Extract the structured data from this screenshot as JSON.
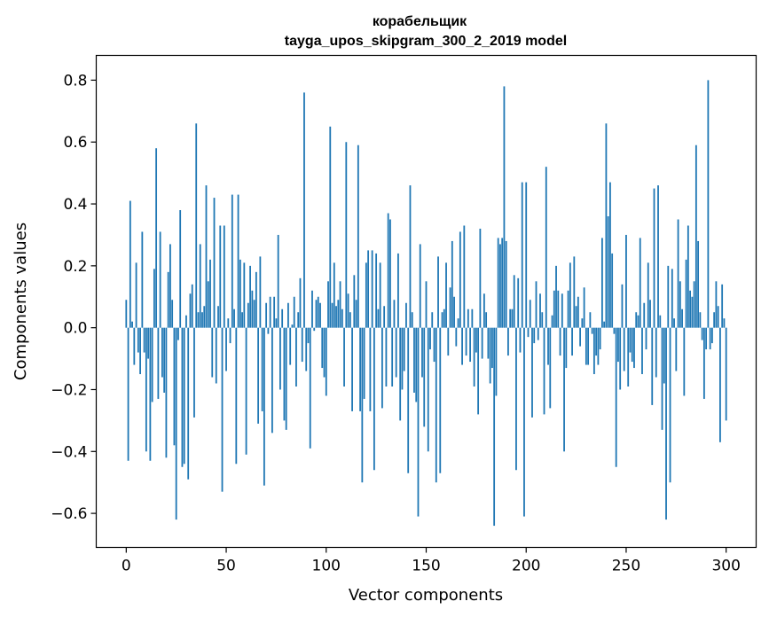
{
  "chart_data": {
    "type": "bar",
    "title": "корабельщик",
    "subtitle": "tayga_upos_skipgram_300_2_2019 model",
    "xlabel": "Vector components",
    "ylabel": "Components values",
    "xlim": [
      -15,
      315
    ],
    "ylim": [
      -0.71,
      0.88
    ],
    "xticks": [
      0,
      50,
      100,
      150,
      200,
      250,
      300
    ],
    "yticks": [
      -0.6,
      -0.4,
      -0.2,
      0.0,
      0.2,
      0.4,
      0.6,
      0.8
    ],
    "ytick_labels": [
      "−0.6",
      "−0.4",
      "−0.2",
      "0.0",
      "0.2",
      "0.4",
      "0.6",
      "0.8"
    ],
    "bar_color": "#1f77b4",
    "grid": false,
    "values": [
      0.09,
      -0.43,
      0.41,
      0.02,
      -0.12,
      0.21,
      -0.08,
      -0.15,
      0.31,
      -0.08,
      -0.4,
      -0.1,
      -0.43,
      -0.24,
      0.19,
      0.58,
      -0.23,
      0.31,
      -0.16,
      -0.21,
      -0.42,
      0.18,
      0.27,
      0.09,
      -0.38,
      -0.62,
      -0.04,
      0.38,
      -0.45,
      -0.44,
      0.04,
      -0.49,
      0.11,
      0.14,
      -0.29,
      0.66,
      0.05,
      0.27,
      0.05,
      0.07,
      0.46,
      0.15,
      0.22,
      -0.16,
      0.42,
      -0.18,
      0.07,
      0.33,
      -0.53,
      0.33,
      -0.14,
      0.03,
      -0.05,
      0.43,
      0.06,
      -0.44,
      0.43,
      0.22,
      0.05,
      0.21,
      -0.41,
      0.08,
      0.2,
      0.12,
      0.09,
      0.18,
      -0.31,
      0.23,
      -0.27,
      -0.51,
      0.08,
      -0.02,
      0.1,
      -0.34,
      0.1,
      0.03,
      0.3,
      -0.2,
      0.06,
      -0.3,
      -0.33,
      0.08,
      -0.12,
      0.01,
      0.1,
      -0.19,
      0.05,
      0.16,
      -0.11,
      0.76,
      -0.14,
      -0.05,
      -0.39,
      0.12,
      -0.01,
      0.09,
      0.1,
      0.08,
      -0.13,
      -0.16,
      -0.22,
      0.15,
      0.65,
      0.08,
      0.21,
      0.07,
      0.09,
      0.15,
      0.06,
      -0.19,
      0.6,
      0.11,
      0.05,
      -0.27,
      0.17,
      0.09,
      0.59,
      -0.27,
      -0.5,
      -0.23,
      0.21,
      0.25,
      -0.27,
      0.25,
      -0.46,
      0.24,
      0.06,
      0.21,
      -0.26,
      0.07,
      -0.19,
      0.37,
      0.35,
      -0.19,
      0.09,
      -0.16,
      0.24,
      -0.3,
      -0.2,
      -0.14,
      0.08,
      -0.47,
      0.46,
      0.05,
      -0.21,
      -0.24,
      -0.61,
      0.27,
      -0.16,
      -0.32,
      0.15,
      -0.4,
      -0.07,
      0.05,
      -0.11,
      -0.5,
      0.23,
      -0.47,
      0.05,
      0.06,
      0.21,
      -0.09,
      0.13,
      0.28,
      0.1,
      -0.06,
      0.03,
      0.31,
      -0.12,
      0.33,
      -0.09,
      0.06,
      -0.11,
      0.06,
      -0.19,
      -0.08,
      -0.28,
      0.32,
      -0.1,
      0.11,
      0.05,
      -0.1,
      -0.18,
      -0.13,
      -0.64,
      -0.22,
      0.29,
      0.27,
      0.29,
      0.78,
      0.28,
      -0.09,
      0.06,
      0.06,
      0.17,
      -0.46,
      0.16,
      -0.08,
      0.47,
      -0.61,
      0.47,
      -0.03,
      0.09,
      -0.29,
      -0.05,
      0.15,
      -0.04,
      0.11,
      0.05,
      -0.28,
      0.52,
      -0.12,
      -0.26,
      0.04,
      0.12,
      0.2,
      0.12,
      -0.09,
      0.11,
      -0.4,
      -0.13,
      0.12,
      0.21,
      -0.09,
      0.23,
      0.07,
      0.1,
      -0.06,
      0.03,
      0.13,
      -0.12,
      -0.12,
      0.05,
      -0.02,
      -0.15,
      -0.09,
      -0.12,
      -0.07,
      0.29,
      0.02,
      0.66,
      0.36,
      0.47,
      0.24,
      -0.02,
      -0.45,
      -0.11,
      -0.2,
      0.14,
      -0.14,
      0.3,
      -0.19,
      -0.08,
      -0.11,
      -0.13,
      0.05,
      0.04,
      0.29,
      -0.15,
      0.08,
      -0.07,
      0.21,
      0.09,
      -0.25,
      0.45,
      -0.16,
      0.46,
      0.04,
      -0.33,
      -0.18,
      -0.62,
      0.2,
      -0.5,
      0.19,
      0.03,
      -0.14,
      0.35,
      0.15,
      0.06,
      -0.22,
      0.22,
      0.33,
      0.12,
      0.1,
      0.15,
      0.59,
      0.28,
      0.05,
      -0.04,
      -0.23,
      -0.07,
      0.8,
      -0.07,
      -0.05,
      0.05,
      0.15,
      0.07,
      -0.37,
      0.14,
      0.03,
      -0.3
    ]
  }
}
